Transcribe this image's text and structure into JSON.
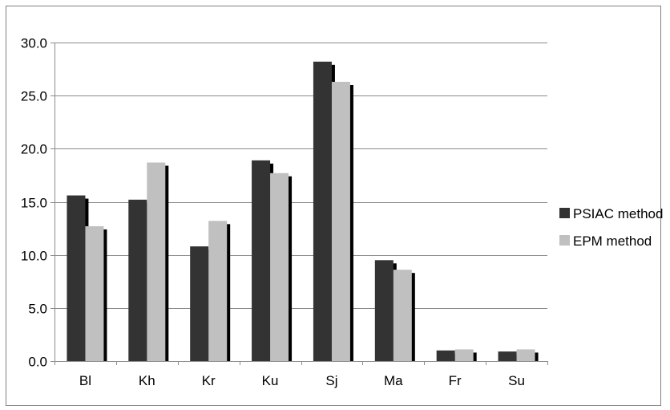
{
  "chart_data": {
    "type": "bar",
    "categories": [
      "Bl",
      "Kh",
      "Kr",
      "Ku",
      "Sj",
      "Ma",
      "Fr",
      "Su"
    ],
    "series": [
      {
        "name": "PSIAC method",
        "color": "#333333",
        "values": [
          15.6,
          15.2,
          10.8,
          18.9,
          28.2,
          9.5,
          1.0,
          0.9
        ]
      },
      {
        "name": "EPM method",
        "color": "#c0c0c0",
        "values": [
          12.7,
          18.7,
          13.2,
          17.7,
          26.3,
          8.6,
          1.1,
          1.1
        ]
      }
    ],
    "yticks": [
      "0.0",
      "5.0",
      "10.0",
      "15.0",
      "20.0",
      "25.0",
      "30.0"
    ],
    "ylim": [
      0,
      30
    ],
    "grid": true,
    "legend_position": "right",
    "bar_shadow_color": "#000000",
    "title": "",
    "xlabel": "",
    "ylabel": ""
  }
}
